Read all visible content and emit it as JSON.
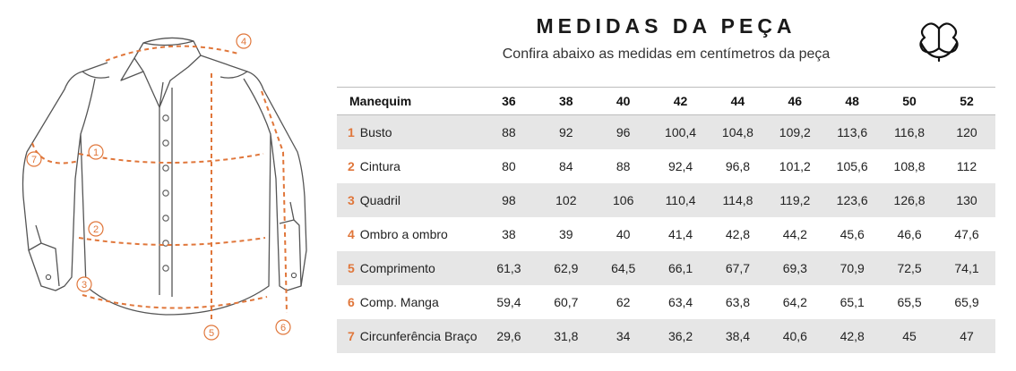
{
  "header": {
    "title": "MEDIDAS DA PEÇA",
    "subtitle": "Confira abaixo as medidas em centímetros da peça"
  },
  "colors": {
    "accent": "#e0763a",
    "row_shade": "#e6e6e6"
  },
  "icons": {
    "brand": "cotton-flower-icon"
  },
  "illustration": {
    "markers": [
      "1",
      "2",
      "3",
      "4",
      "5",
      "6",
      "7"
    ]
  },
  "table": {
    "header_label": "Manequim",
    "sizes": [
      "36",
      "38",
      "40",
      "42",
      "44",
      "46",
      "48",
      "50",
      "52"
    ],
    "rows": [
      {
        "num": "1",
        "label": "Busto",
        "values": [
          "88",
          "92",
          "96",
          "100,4",
          "104,8",
          "109,2",
          "113,6",
          "116,8",
          "120"
        ]
      },
      {
        "num": "2",
        "label": "Cintura",
        "values": [
          "80",
          "84",
          "88",
          "92,4",
          "96,8",
          "101,2",
          "105,6",
          "108,8",
          "112"
        ]
      },
      {
        "num": "3",
        "label": "Quadril",
        "values": [
          "98",
          "102",
          "106",
          "110,4",
          "114,8",
          "119,2",
          "123,6",
          "126,8",
          "130"
        ]
      },
      {
        "num": "4",
        "label": "Ombro a ombro",
        "values": [
          "38",
          "39",
          "40",
          "41,4",
          "42,8",
          "44,2",
          "45,6",
          "46,6",
          "47,6"
        ]
      },
      {
        "num": "5",
        "label": "Comprimento",
        "values": [
          "61,3",
          "62,9",
          "64,5",
          "66,1",
          "67,7",
          "69,3",
          "70,9",
          "72,5",
          "74,1"
        ]
      },
      {
        "num": "6",
        "label": "Comp. Manga",
        "values": [
          "59,4",
          "60,7",
          "62",
          "63,4",
          "63,8",
          "64,2",
          "65,1",
          "65,5",
          "65,9"
        ]
      },
      {
        "num": "7",
        "label": "Circunferência Braço",
        "values": [
          "29,6",
          "31,8",
          "34",
          "36,2",
          "38,4",
          "40,6",
          "42,8",
          "45",
          "47"
        ]
      }
    ]
  }
}
